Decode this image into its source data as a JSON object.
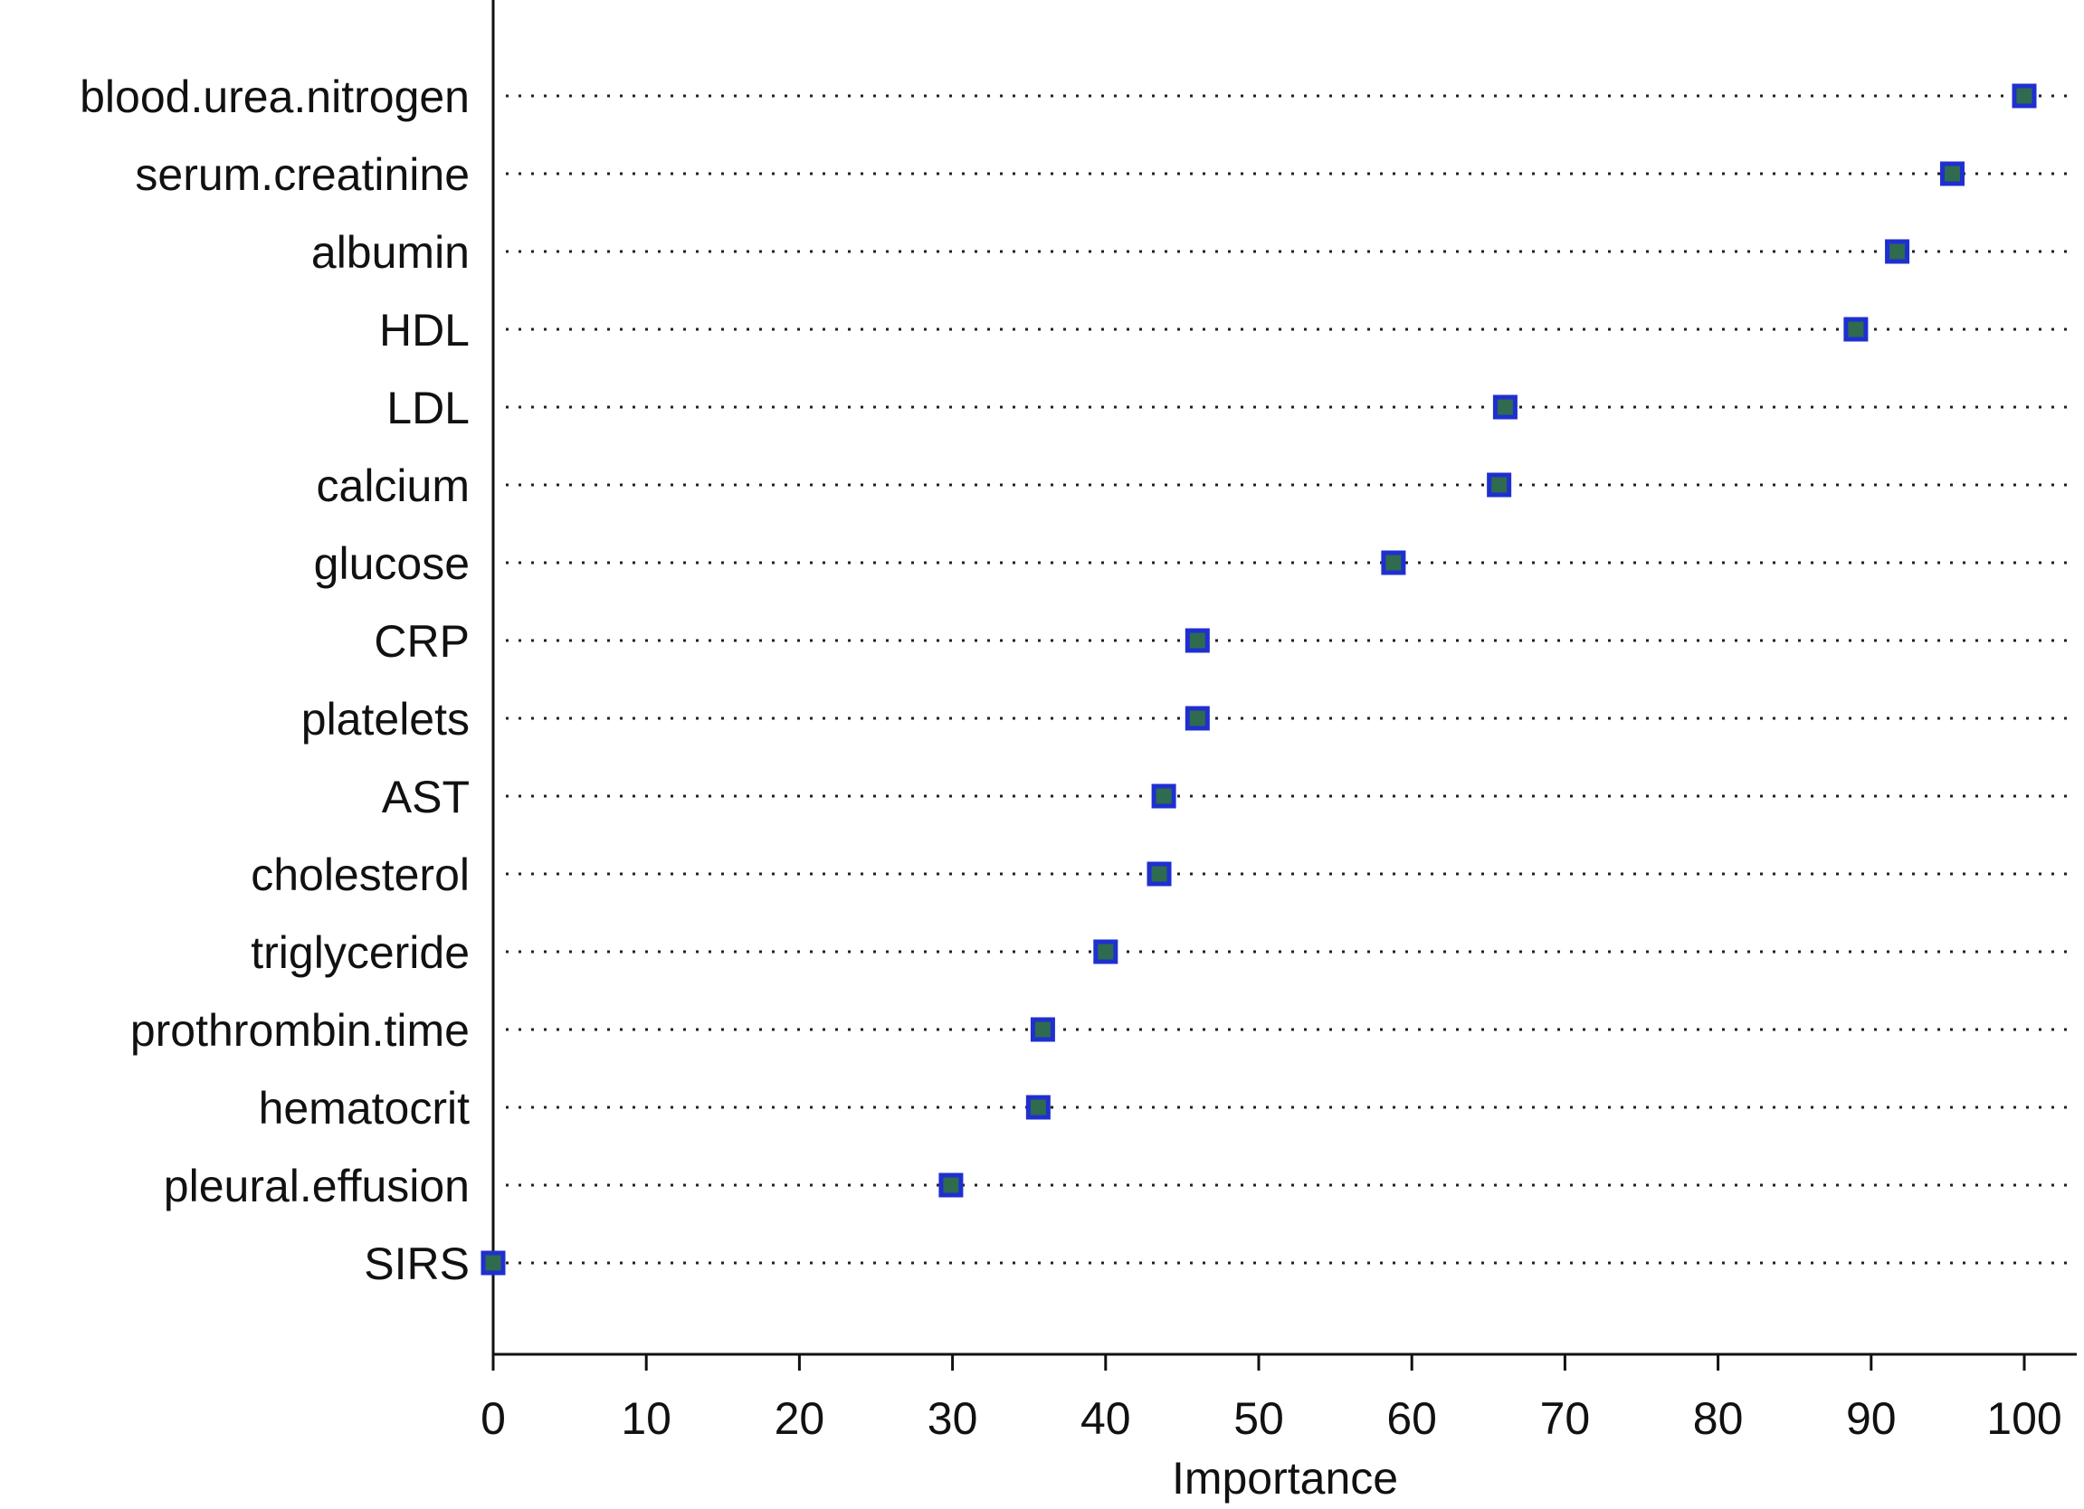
{
  "chart_data": {
    "type": "scatter",
    "title": "",
    "xlabel": "Importance",
    "ylabel": "",
    "xlim": [
      0,
      103.5
    ],
    "x_ticks": [
      0,
      10,
      20,
      30,
      40,
      50,
      60,
      70,
      80,
      90,
      100
    ],
    "grid": "dotted horizontal guide lines per category",
    "legend": "none",
    "marker": {
      "shape": "square",
      "fill": "#2e6b4f",
      "stroke": "#1f2fd0"
    },
    "categories": [
      "blood.urea.nitrogen",
      "serum.creatinine",
      "albumin",
      "HDL",
      "LDL",
      "calcium",
      "glucose",
      "CRP",
      "platelets",
      "AST",
      "cholesterol",
      "triglyceride",
      "prothrombin.time",
      "hematocrit",
      "pleural.effusion",
      "SIRS"
    ],
    "values": [
      100,
      95.3,
      91.7,
      89,
      66.1,
      65.7,
      58.8,
      46,
      46,
      43.8,
      43.5,
      40,
      35.9,
      35.6,
      29.9,
      0
    ]
  }
}
